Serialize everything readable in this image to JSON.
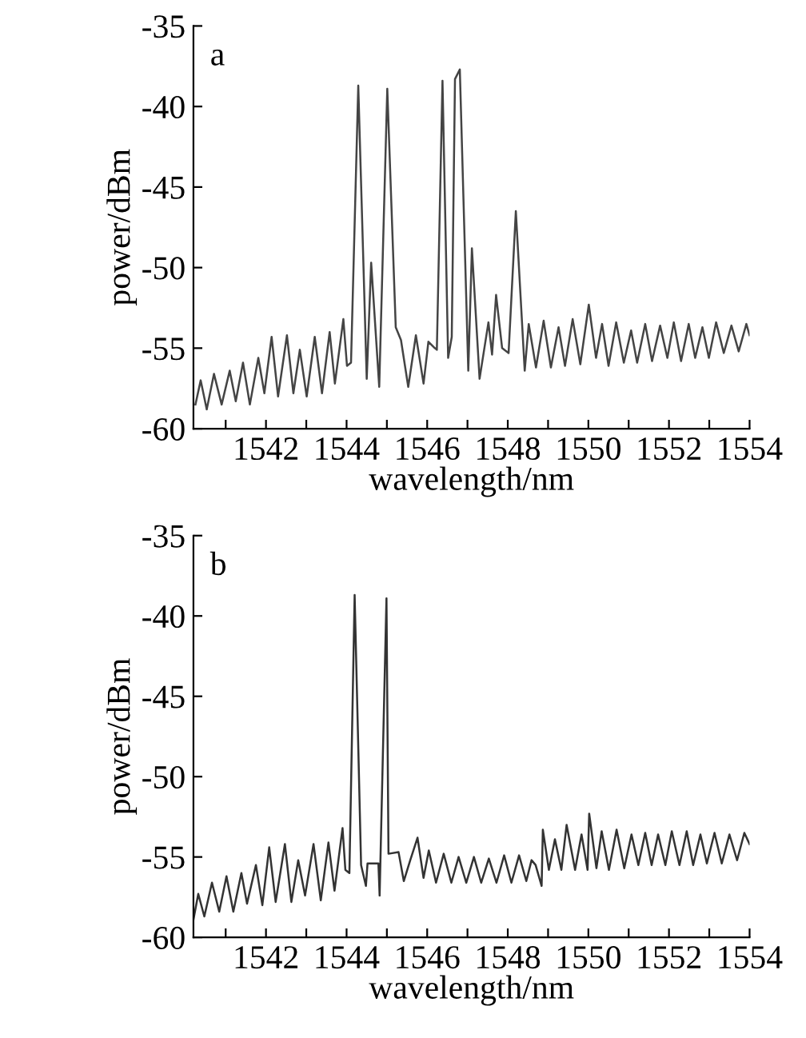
{
  "chart_data": [
    {
      "type": "line",
      "annotations": [
        "a"
      ],
      "xlabel": "wavelength/nm",
      "ylabel": "power/dBm",
      "xlim": [
        1540.2,
        1554
      ],
      "ylim": [
        -60,
        -35
      ],
      "xticks": [
        {
          "value": 1541,
          "label": null
        },
        1542,
        {
          "value": 1543,
          "label": null
        },
        1544,
        {
          "value": 1545,
          "label": null
        },
        1546,
        {
          "value": 1547,
          "label": null
        },
        1548,
        {
          "value": 1549,
          "label": null
        },
        1550,
        {
          "value": 1551,
          "label": null
        },
        1552,
        {
          "value": 1553,
          "label": null
        },
        1554
      ],
      "yticks": [
        -60,
        -55,
        -50,
        -45,
        -40,
        -35
      ],
      "grid": false,
      "legend": false,
      "series": [
        {
          "color": "#444444",
          "x": [
            1540.25,
            1540.38,
            1540.53,
            1540.71,
            1540.9,
            1541.1,
            1541.25,
            1541.43,
            1541.6,
            1541.81,
            1541.96,
            1542.14,
            1542.3,
            1542.52,
            1542.68,
            1542.84,
            1543.01,
            1543.21,
            1543.39,
            1543.58,
            1543.71,
            1543.92,
            1544.01,
            1544.11,
            1544.29,
            1544.5,
            1544.61,
            1544.81,
            1545.01,
            1545.22,
            1545.35,
            1545.53,
            1545.72,
            1545.91,
            1546.03,
            1546.19,
            1546.24,
            1546.38,
            1546.52,
            1546.61,
            1546.69,
            1546.81,
            1547.02,
            1547.11,
            1547.3,
            1547.52,
            1547.61,
            1547.71,
            1547.86,
            1548.02,
            1548.2,
            1548.42,
            1548.52,
            1548.7,
            1548.89,
            1549.07,
            1549.26,
            1549.42,
            1549.61,
            1549.8,
            1550.01,
            1550.19,
            1550.34,
            1550.5,
            1550.69,
            1550.88,
            1551.06,
            1551.21,
            1551.41,
            1551.58,
            1551.78,
            1551.96,
            1552.12,
            1552.3,
            1552.49,
            1552.65,
            1552.83,
            1552.99,
            1553.17,
            1553.36,
            1553.55,
            1553.73,
            1553.92,
            1554.0
          ],
          "values": [
            -58.5,
            -57.0,
            -58.8,
            -56.6,
            -58.5,
            -56.4,
            -58.3,
            -55.9,
            -58.5,
            -55.6,
            -57.8,
            -54.3,
            -58.0,
            -54.2,
            -57.8,
            -55.1,
            -58.0,
            -54.3,
            -57.8,
            -54.0,
            -57.2,
            -53.2,
            -56.1,
            -55.9,
            -38.7,
            -56.9,
            -49.7,
            -57.4,
            -38.9,
            -53.7,
            -54.5,
            -57.4,
            -54.2,
            -57.2,
            -54.6,
            -55.0,
            -55.1,
            -38.4,
            -55.6,
            -54.3,
            -38.3,
            -37.7,
            -56.4,
            -48.8,
            -56.9,
            -53.4,
            -55.4,
            -51.7,
            -55.0,
            -55.3,
            -46.5,
            -56.4,
            -53.5,
            -56.2,
            -53.3,
            -56.2,
            -53.7,
            -56.1,
            -53.2,
            -56.0,
            -52.3,
            -55.6,
            -53.5,
            -56.1,
            -53.4,
            -55.9,
            -53.9,
            -55.9,
            -53.5,
            -55.8,
            -53.6,
            -55.6,
            -53.4,
            -55.8,
            -53.5,
            -55.6,
            -53.7,
            -55.6,
            -53.4,
            -55.3,
            -53.6,
            -55.2,
            -53.5,
            -54.2
          ]
        }
      ]
    },
    {
      "type": "line",
      "annotations": [
        "b"
      ],
      "xlabel": "wavelength/nm",
      "ylabel": "power/dBm",
      "xlim": [
        1540.2,
        1554
      ],
      "ylim": [
        -60,
        -35
      ],
      "xticks": [
        {
          "value": 1541,
          "label": null
        },
        1542,
        {
          "value": 1543,
          "label": null
        },
        1544,
        {
          "value": 1545,
          "label": null
        },
        1546,
        {
          "value": 1547,
          "label": null
        },
        1548,
        {
          "value": 1549,
          "label": null
        },
        1550,
        {
          "value": 1551,
          "label": null
        },
        1552,
        {
          "value": 1553,
          "label": null
        },
        1554
      ],
      "yticks": [
        -60,
        -55,
        -50,
        -45,
        -40,
        -35
      ],
      "grid": false,
      "legend": false,
      "series": [
        {
          "color": "#333333",
          "x": [
            1540.2,
            1540.32,
            1540.47,
            1540.66,
            1540.84,
            1541.02,
            1541.19,
            1541.39,
            1541.53,
            1541.75,
            1541.91,
            1542.08,
            1542.24,
            1542.47,
            1542.63,
            1542.8,
            1542.97,
            1543.18,
            1543.36,
            1543.55,
            1543.7,
            1543.9,
            1543.97,
            1544.07,
            1544.2,
            1544.36,
            1544.48,
            1544.52,
            1544.79,
            1544.82,
            1544.99,
            1545.04,
            1545.29,
            1545.42,
            1545.58,
            1545.76,
            1545.91,
            1546.04,
            1546.22,
            1546.41,
            1546.6,
            1546.78,
            1546.97,
            1547.16,
            1547.34,
            1547.53,
            1547.72,
            1547.91,
            1548.09,
            1548.28,
            1548.46,
            1548.59,
            1548.69,
            1548.84,
            1548.87,
            1549.02,
            1549.17,
            1549.33,
            1549.46,
            1549.67,
            1549.83,
            1549.98,
            1550.02,
            1550.2,
            1550.33,
            1550.51,
            1550.7,
            1550.89,
            1551.07,
            1551.24,
            1551.41,
            1551.57,
            1551.73,
            1551.91,
            1552.07,
            1552.26,
            1552.44,
            1552.6,
            1552.78,
            1552.94,
            1553.13,
            1553.31,
            1553.5,
            1553.69,
            1553.87,
            1554.0
          ],
          "values": [
            -58.9,
            -57.3,
            -58.7,
            -56.6,
            -58.4,
            -56.2,
            -58.4,
            -56.0,
            -57.9,
            -55.5,
            -58.0,
            -54.4,
            -57.8,
            -54.2,
            -57.8,
            -55.2,
            -57.4,
            -54.2,
            -57.7,
            -54.1,
            -57.1,
            -53.2,
            -55.8,
            -56.0,
            -38.7,
            -55.5,
            -56.8,
            -55.4,
            -55.4,
            -57.4,
            -38.9,
            -54.8,
            -54.7,
            -56.5,
            -55.2,
            -53.8,
            -56.3,
            -54.6,
            -56.6,
            -54.8,
            -56.6,
            -55.0,
            -56.6,
            -55.0,
            -56.6,
            -55.1,
            -56.6,
            -54.9,
            -56.6,
            -54.9,
            -56.5,
            -55.2,
            -55.5,
            -56.8,
            -53.3,
            -55.8,
            -53.9,
            -55.8,
            -53.0,
            -55.8,
            -53.6,
            -55.8,
            -52.3,
            -55.7,
            -53.4,
            -55.8,
            -53.3,
            -55.7,
            -53.6,
            -55.5,
            -53.5,
            -55.5,
            -53.6,
            -55.5,
            -53.4,
            -55.5,
            -53.4,
            -55.5,
            -53.6,
            -55.4,
            -53.5,
            -55.4,
            -53.6,
            -55.2,
            -53.5,
            -54.2
          ]
        }
      ]
    }
  ]
}
